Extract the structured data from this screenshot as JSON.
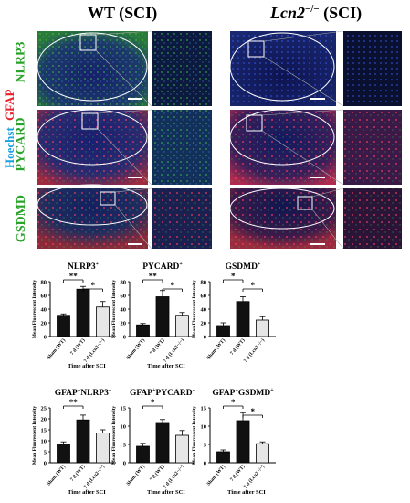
{
  "headers": {
    "wt": "WT (SCI)",
    "ko": "Lcn2",
    "ko_sup": "−/−",
    "ko_suffix": " (SCI)"
  },
  "side_label": {
    "hoechst": "Hoechst",
    "gfap": "GFAP"
  },
  "rows": [
    "NLRP3",
    "PYCARD",
    "GSDMD"
  ],
  "colors": {
    "hoechst": "#1aa0e0",
    "gfap": "#e8202a",
    "green": "#29a329",
    "bar_sham": "#111111",
    "bar_wt": "#111111",
    "bar_ko": "#e6e6e6"
  },
  "chart_data": [
    {
      "type": "bar",
      "title": "NLRP3",
      "title_sup": "+",
      "ylabel": "Mean Fluorescent Intensity",
      "xlabel": "Time after SCI",
      "categories": [
        "Sham (WT)",
        "7 d (WT)",
        "7 d (Lcn2−/−)"
      ],
      "values": [
        31,
        69,
        43
      ],
      "errors": [
        2,
        4,
        8
      ],
      "ylim": [
        0,
        80
      ],
      "ticks": [
        0,
        20,
        40,
        60,
        80
      ],
      "sig": [
        {
          "from": 0,
          "to": 1,
          "label": "**"
        },
        {
          "from": 1,
          "to": 2,
          "label": "*"
        }
      ]
    },
    {
      "type": "bar",
      "title": "PYCARD",
      "title_sup": "+",
      "ylabel": "Mean Fluorescent Intensity",
      "xlabel": "Time after SCI",
      "categories": [
        "Sham (WT)",
        "7 d (WT)",
        "7 d (Lcn2−/−)"
      ],
      "values": [
        17,
        58,
        31
      ],
      "errors": [
        2,
        9,
        4
      ],
      "ylim": [
        0,
        80
      ],
      "ticks": [
        0,
        20,
        40,
        60,
        80
      ],
      "sig": [
        {
          "from": 0,
          "to": 1,
          "label": "**"
        },
        {
          "from": 1,
          "to": 2,
          "label": "*"
        }
      ]
    },
    {
      "type": "bar",
      "title": "GSDMD",
      "title_sup": "+",
      "ylabel": "Mean Fluorescent Intensity",
      "xlabel": "",
      "categories": [
        "Sham (WT)",
        "7 d (WT)",
        "7 d (Lcn2−/−)"
      ],
      "values": [
        16,
        51,
        24
      ],
      "errors": [
        4,
        7,
        5
      ],
      "ylim": [
        0,
        80
      ],
      "ticks": [
        0,
        20,
        40,
        60,
        80
      ],
      "sig": [
        {
          "from": 0,
          "to": 1,
          "label": "*"
        },
        {
          "from": 1,
          "to": 2,
          "label": "*"
        }
      ]
    },
    {
      "type": "bar",
      "title": "GFAP",
      "title_sup": "+",
      "title2": "NLRP3",
      "title2_sup": "+",
      "ylabel": "Mean Fluorescent Intensity",
      "xlabel": "Time after SCI",
      "categories": [
        "Sham (WT)",
        "7 d (WT)",
        "7 d (Lcn2−/−)"
      ],
      "values": [
        8.5,
        19.5,
        13.5
      ],
      "errors": [
        1,
        2.2,
        1.5
      ],
      "ylim": [
        0,
        25
      ],
      "ticks": [
        0,
        5,
        10,
        15,
        20,
        25
      ],
      "sig": [
        {
          "from": 0,
          "to": 1,
          "label": "**"
        }
      ]
    },
    {
      "type": "bar",
      "title": "GFAP",
      "title_sup": "+",
      "title2": "PYCARD",
      "title2_sup": "+",
      "ylabel": "Mean Fluorescent Intensity",
      "xlabel": "Time after SCI",
      "categories": [
        "Sham (WT)",
        "7 d (WT)",
        "7 d (Lcn2−/−)"
      ],
      "values": [
        4.5,
        11,
        7.5
      ],
      "errors": [
        0.8,
        0.8,
        1.3
      ],
      "ylim": [
        0,
        15
      ],
      "ticks": [
        0,
        5,
        10,
        15
      ],
      "sig": [
        {
          "from": 0,
          "to": 1,
          "label": "*"
        }
      ]
    },
    {
      "type": "bar",
      "title": "GFAP",
      "title_sup": "+",
      "title2": "GSDMD",
      "title2_sup": "+",
      "ylabel": "Mean Fluorescent Intensity",
      "xlabel": "Time after SCI",
      "categories": [
        "Sham (WT)",
        "7 d (WT)",
        "7 d (Lcn2−/−)"
      ],
      "values": [
        3,
        11.5,
        5.2
      ],
      "errors": [
        0.5,
        2.2,
        0.5
      ],
      "ylim": [
        0,
        15
      ],
      "ticks": [
        0,
        5,
        10,
        15
      ],
      "sig": [
        {
          "from": 0,
          "to": 1,
          "label": "*"
        },
        {
          "from": 1,
          "to": 2,
          "label": "*"
        }
      ]
    }
  ]
}
